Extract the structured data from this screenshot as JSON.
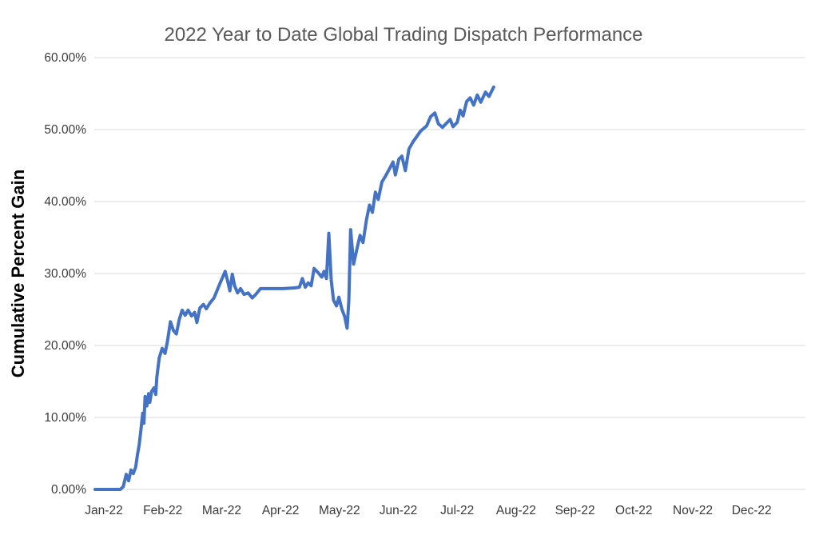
{
  "page": {
    "background": "#ffffff"
  },
  "chart_data": {
    "type": "line",
    "title": "2022 Year to Date Global Trading Dispatch Performance",
    "xlabel": "",
    "ylabel": "Cumulative Percent Gain",
    "ylim": [
      0,
      60
    ],
    "grid": true,
    "legend": "none",
    "colors": {
      "line": "#4472C4",
      "grid": "#D9D9D9",
      "title": "#595959",
      "tick_text": "#3B3B3B",
      "axis_title_text": "#000000"
    },
    "y_ticks": [
      {
        "value": 0,
        "label": "0.00%"
      },
      {
        "value": 10,
        "label": "10.00%"
      },
      {
        "value": 20,
        "label": "20.00%"
      },
      {
        "value": 30,
        "label": "30.00%"
      },
      {
        "value": 40,
        "label": "40.00%"
      },
      {
        "value": 50,
        "label": "50.00%"
      },
      {
        "value": 60,
        "label": "60.00%"
      }
    ],
    "x_ticks": [
      {
        "month": 0,
        "label": "Jan-22"
      },
      {
        "month": 1,
        "label": "Feb-22"
      },
      {
        "month": 2,
        "label": "Mar-22"
      },
      {
        "month": 3,
        "label": "Apr-22"
      },
      {
        "month": 4,
        "label": "May-22"
      },
      {
        "month": 5,
        "label": "Jun-22"
      },
      {
        "month": 6,
        "label": "Jul-22"
      },
      {
        "month": 7,
        "label": "Aug-22"
      },
      {
        "month": 8,
        "label": "Sep-22"
      },
      {
        "month": 9,
        "label": "Oct-22"
      },
      {
        "month": 10,
        "label": "Nov-22"
      },
      {
        "month": 11,
        "label": "Dec-22"
      }
    ],
    "series": [
      {
        "name": "Cumulative Percent Gain",
        "x_unit": "months_since_jan_2022",
        "y_unit": "percent",
        "points": [
          [
            -0.15,
            0.0
          ],
          [
            0.1,
            0.0
          ],
          [
            0.28,
            0.0
          ],
          [
            0.33,
            0.4
          ],
          [
            0.38,
            2.1
          ],
          [
            0.42,
            1.2
          ],
          [
            0.46,
            2.7
          ],
          [
            0.5,
            2.2
          ],
          [
            0.54,
            3.1
          ],
          [
            0.57,
            4.8
          ],
          [
            0.6,
            6.2
          ],
          [
            0.63,
            8.3
          ],
          [
            0.66,
            10.6
          ],
          [
            0.68,
            9.2
          ],
          [
            0.7,
            12.9
          ],
          [
            0.73,
            11.6
          ],
          [
            0.76,
            13.3
          ],
          [
            0.78,
            12.1
          ],
          [
            0.81,
            13.6
          ],
          [
            0.85,
            14.1
          ],
          [
            0.88,
            13.2
          ],
          [
            0.9,
            15.6
          ],
          [
            0.94,
            18.3
          ],
          [
            0.99,
            19.6
          ],
          [
            1.04,
            18.9
          ],
          [
            1.08,
            20.6
          ],
          [
            1.13,
            23.3
          ],
          [
            1.18,
            22.1
          ],
          [
            1.23,
            21.6
          ],
          [
            1.28,
            23.6
          ],
          [
            1.33,
            24.9
          ],
          [
            1.38,
            24.2
          ],
          [
            1.43,
            24.9
          ],
          [
            1.49,
            24.1
          ],
          [
            1.54,
            24.6
          ],
          [
            1.58,
            23.2
          ],
          [
            1.63,
            25.2
          ],
          [
            1.69,
            25.7
          ],
          [
            1.74,
            25.1
          ],
          [
            1.8,
            25.9
          ],
          [
            1.87,
            26.6
          ],
          [
            1.97,
            28.6
          ],
          [
            2.06,
            30.3
          ],
          [
            2.1,
            29.0
          ],
          [
            2.14,
            27.6
          ],
          [
            2.18,
            29.9
          ],
          [
            2.22,
            28.3
          ],
          [
            2.27,
            27.3
          ],
          [
            2.32,
            27.9
          ],
          [
            2.38,
            27.1
          ],
          [
            2.45,
            27.3
          ],
          [
            2.52,
            26.6
          ],
          [
            2.58,
            27.1
          ],
          [
            2.66,
            27.9
          ],
          [
            2.85,
            27.9
          ],
          [
            3.05,
            27.9
          ],
          [
            3.24,
            28.0
          ],
          [
            3.32,
            28.1
          ],
          [
            3.37,
            29.3
          ],
          [
            3.42,
            28.1
          ],
          [
            3.47,
            28.7
          ],
          [
            3.52,
            28.3
          ],
          [
            3.57,
            30.7
          ],
          [
            3.64,
            30.1
          ],
          [
            3.7,
            29.5
          ],
          [
            3.74,
            30.3
          ],
          [
            3.78,
            29.3
          ],
          [
            3.82,
            35.6
          ],
          [
            3.86,
            29.1
          ],
          [
            3.9,
            26.3
          ],
          [
            3.95,
            25.5
          ],
          [
            3.99,
            26.7
          ],
          [
            4.04,
            25.1
          ],
          [
            4.09,
            24.0
          ],
          [
            4.13,
            22.4
          ],
          [
            4.16,
            26.3
          ],
          [
            4.19,
            36.1
          ],
          [
            4.24,
            31.3
          ],
          [
            4.3,
            33.5
          ],
          [
            4.35,
            35.3
          ],
          [
            4.4,
            34.3
          ],
          [
            4.46,
            37.5
          ],
          [
            4.51,
            39.5
          ],
          [
            4.56,
            38.5
          ],
          [
            4.61,
            41.3
          ],
          [
            4.66,
            40.3
          ],
          [
            4.72,
            42.7
          ],
          [
            4.78,
            43.5
          ],
          [
            4.86,
            44.7
          ],
          [
            4.91,
            45.5
          ],
          [
            4.95,
            43.7
          ],
          [
            5.01,
            45.9
          ],
          [
            5.06,
            46.3
          ],
          [
            5.12,
            44.3
          ],
          [
            5.18,
            47.3
          ],
          [
            5.25,
            48.3
          ],
          [
            5.38,
            49.8
          ],
          [
            5.48,
            50.5
          ],
          [
            5.55,
            51.8
          ],
          [
            5.62,
            52.3
          ],
          [
            5.68,
            50.8
          ],
          [
            5.75,
            50.3
          ],
          [
            5.82,
            50.9
          ],
          [
            5.88,
            51.4
          ],
          [
            5.93,
            50.4
          ],
          [
            6.0,
            51.0
          ],
          [
            6.05,
            52.7
          ],
          [
            6.1,
            51.9
          ],
          [
            6.16,
            53.9
          ],
          [
            6.22,
            54.4
          ],
          [
            6.28,
            53.4
          ],
          [
            6.34,
            54.8
          ],
          [
            6.4,
            53.8
          ],
          [
            6.48,
            55.2
          ],
          [
            6.54,
            54.6
          ],
          [
            6.62,
            55.9
          ]
        ]
      }
    ]
  }
}
